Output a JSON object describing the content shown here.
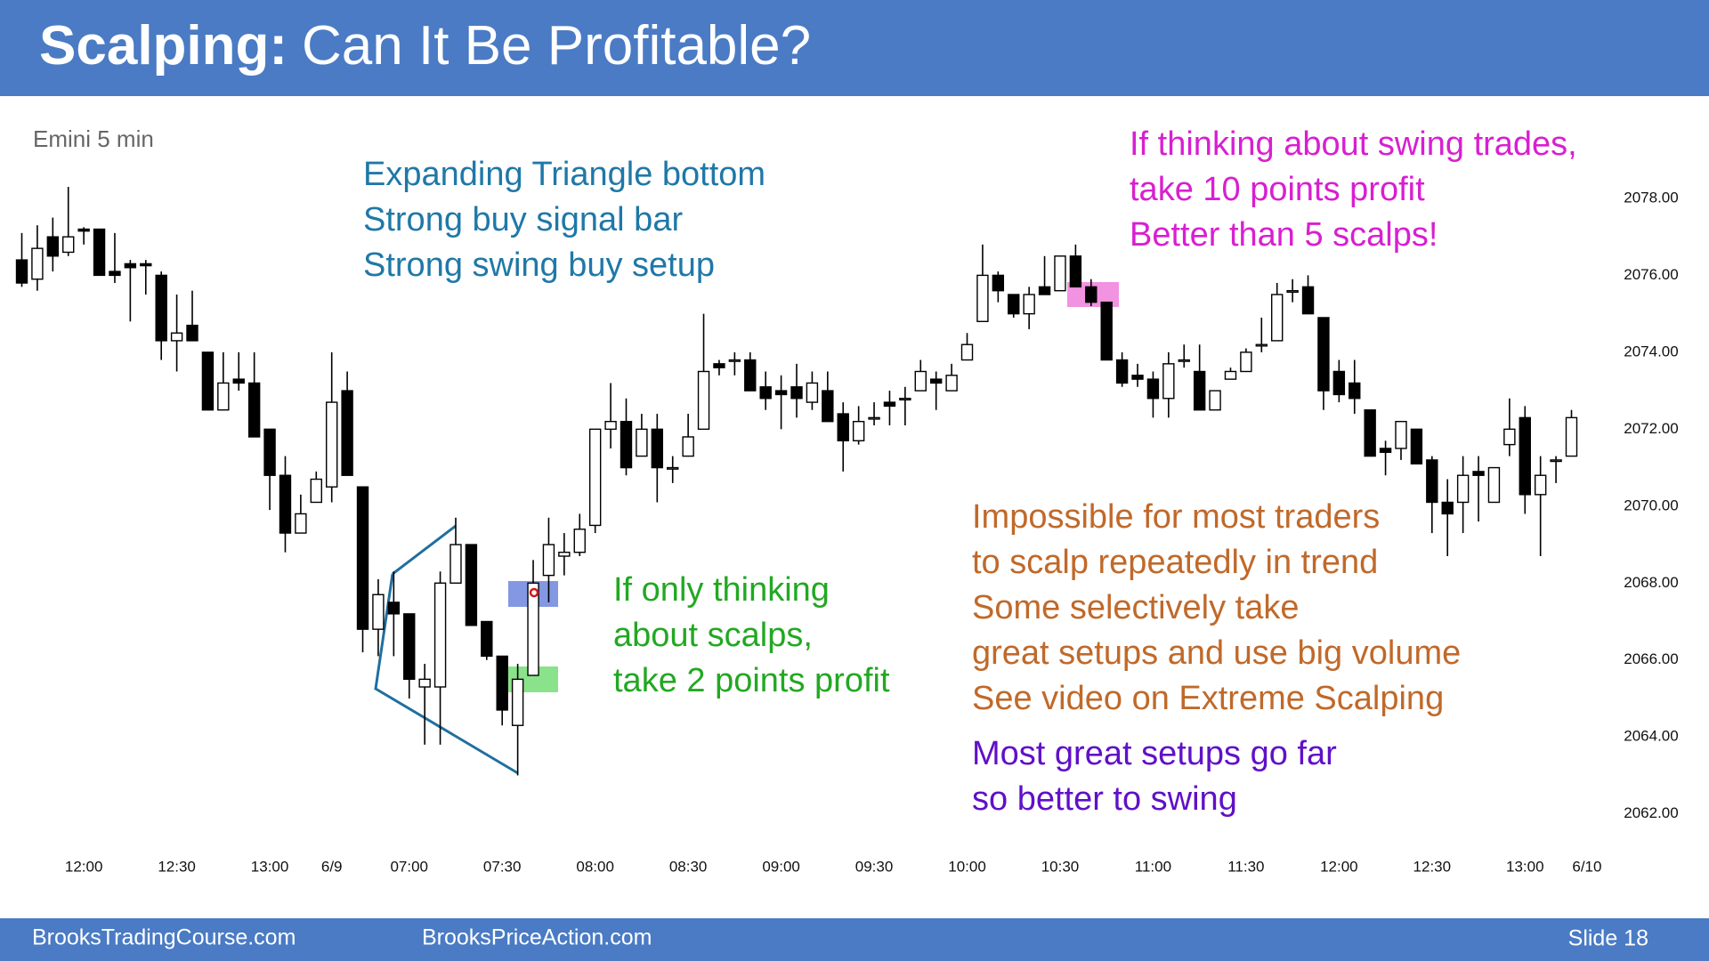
{
  "header": {
    "title_bold": "Scalping:",
    "title": "Can It Be Profitable?"
  },
  "chart_data": {
    "type": "candlestick",
    "subtitle": "Emini 5 min",
    "categories": [
      null,
      null,
      null,
      null,
      "12:00",
      null,
      null,
      null,
      null,
      null,
      "12:30",
      null,
      null,
      null,
      null,
      null,
      "13:00",
      null,
      null,
      null,
      "6/9",
      null,
      null,
      null,
      null,
      "07:00",
      null,
      null,
      null,
      null,
      null,
      "07:30",
      null,
      null,
      null,
      null,
      null,
      "08:00",
      null,
      null,
      null,
      null,
      null,
      "08:30",
      null,
      null,
      null,
      null,
      null,
      "09:00",
      null,
      null,
      null,
      null,
      null,
      "09:30",
      null,
      null,
      null,
      null,
      null,
      "10:00",
      null,
      null,
      null,
      null,
      null,
      "10:30",
      null,
      null,
      null,
      null,
      null,
      "11:00",
      null,
      null,
      null,
      null,
      null,
      "11:30",
      null,
      null,
      null,
      null,
      null,
      "12:00",
      null,
      null,
      null,
      null,
      null,
      "12:30",
      null,
      null,
      null,
      null,
      null,
      "13:00",
      null,
      null,
      null,
      "6/10"
    ],
    "open": [
      2076.4,
      2075.9,
      2077.0,
      2076.6,
      2077.2,
      2077.2,
      2076.1,
      2076.3,
      2076.3,
      2076.0,
      2074.3,
      2074.7,
      2074.0,
      2072.5,
      2073.3,
      2073.2,
      2072.0,
      2070.8,
      2069.3,
      2070.1,
      2070.5,
      2073.0,
      2070.5,
      2066.8,
      2067.5,
      2067.2,
      2065.3,
      2065.3,
      2068.0,
      2069.0,
      2067.0,
      2066.1,
      2064.3,
      2065.6,
      2068.2,
      2068.7,
      2068.8,
      2069.5,
      2072.0,
      2072.2,
      2071.3,
      2072.0,
      2071.0,
      2071.3,
      2072.0,
      2073.7,
      2073.8,
      2073.8,
      2073.1,
      2073.0,
      2073.1,
      2072.7,
      2073.0,
      2072.4,
      2071.7,
      2072.3,
      2072.7,
      2072.8,
      2073.0,
      2073.3,
      2073.0,
      2073.8,
      2074.8,
      2076.0,
      2075.5,
      2075.0,
      2075.7,
      2075.6,
      2076.5,
      2075.7,
      2075.3,
      2073.8,
      2073.4,
      2073.3,
      2072.8,
      2073.8,
      2073.5,
      2072.5,
      2073.3,
      2073.5,
      2074.2,
      2074.3,
      2075.6,
      2075.7,
      2074.9,
      2073.5,
      2073.2,
      2072.5,
      2071.5,
      2071.5,
      2072.0,
      2071.2,
      2070.1,
      2070.1,
      2070.9,
      2070.1,
      2071.6,
      2072.3,
      2070.3,
      2071.2,
      2071.3,
      null
    ],
    "high": [
      2077.1,
      2077.3,
      2077.5,
      2078.3,
      2077.25,
      2077.2,
      2077.1,
      2076.4,
      2076.4,
      2076.1,
      2075.5,
      2075.6,
      2074.0,
      2074.0,
      2074.0,
      2074.0,
      2072.0,
      2071.3,
      2070.3,
      2070.9,
      2074.0,
      2073.5,
      2070.5,
      2068.1,
      2068.3,
      2067.2,
      2065.9,
      2068.3,
      2069.7,
      2069.0,
      2067.0,
      2066.1,
      2065.9,
      2068.6,
      2069.7,
      2069.3,
      2069.8,
      2072.0,
      2073.2,
      2072.8,
      2072.4,
      2072.4,
      2071.3,
      2072.4,
      2075.0,
      2073.8,
      2074.0,
      2074.0,
      2073.5,
      2073.4,
      2073.7,
      2073.5,
      2073.5,
      2072.7,
      2072.6,
      2072.7,
      2073.0,
      2073.1,
      2073.8,
      2073.5,
      2073.7,
      2074.5,
      2076.8,
      2076.1,
      2075.5,
      2075.7,
      2076.5,
      2076.5,
      2076.8,
      2075.9,
      2075.3,
      2074.0,
      2073.7,
      2073.5,
      2074.0,
      2074.2,
      2074.2,
      2073.0,
      2073.6,
      2074.1,
      2074.9,
      2075.8,
      2075.9,
      2076.0,
      2074.9,
      2073.8,
      2073.8,
      2072.5,
      2071.7,
      2072.2,
      2072.0,
      2071.3,
      2070.7,
      2071.3,
      2071.3,
      2071.0,
      2072.8,
      2072.6,
      2071.3,
      2071.3,
      2072.5,
      null
    ],
    "low": [
      2075.7,
      2075.6,
      2076.1,
      2076.5,
      2076.8,
      2076.0,
      2075.8,
      2074.8,
      2075.5,
      2073.8,
      2073.5,
      2074.3,
      2072.5,
      2072.5,
      2073.0,
      2071.8,
      2069.9,
      2068.8,
      2069.3,
      2070.1,
      2070.1,
      2070.8,
      2066.2,
      2066.1,
      2066.1,
      2065.0,
      2063.8,
      2063.8,
      2068.0,
      2066.9,
      2066.0,
      2064.3,
      2063.0,
      2065.6,
      2067.5,
      2068.2,
      2068.7,
      2069.3,
      2071.5,
      2070.8,
      2071.3,
      2070.1,
      2070.6,
      2071.3,
      2072.0,
      2073.4,
      2073.4,
      2073.0,
      2072.5,
      2072.0,
      2072.3,
      2072.5,
      2072.2,
      2070.9,
      2071.6,
      2072.1,
      2072.1,
      2072.1,
      2073.0,
      2072.5,
      2073.0,
      2073.8,
      2074.8,
      2075.3,
      2074.9,
      2074.6,
      2075.5,
      2075.6,
      2075.7,
      2075.2,
      2073.8,
      2073.1,
      2073.1,
      2072.3,
      2072.3,
      2073.6,
      2072.5,
      2072.5,
      2073.3,
      2073.5,
      2074.0,
      2074.3,
      2075.3,
      2075.0,
      2072.5,
      2072.7,
      2072.4,
      2071.3,
      2070.8,
      2071.2,
      2071.1,
      2069.3,
      2068.7,
      2069.3,
      2069.6,
      2070.1,
      2071.3,
      2069.8,
      2068.7,
      2070.6,
      2071.3,
      null
    ],
    "close": [
      2075.8,
      2076.7,
      2076.5,
      2077.0,
      2077.15,
      2076.0,
      2076.0,
      2076.2,
      2076.25,
      2074.3,
      2074.5,
      2074.3,
      2072.5,
      2073.2,
      2073.2,
      2071.8,
      2070.8,
      2069.3,
      2069.8,
      2070.7,
      2072.7,
      2070.8,
      2066.8,
      2067.7,
      2067.2,
      2065.5,
      2065.5,
      2068.0,
      2069.0,
      2066.9,
      2066.1,
      2064.7,
      2065.5,
      2068.0,
      2069.0,
      2068.8,
      2069.4,
      2072.0,
      2072.2,
      2071.0,
      2072.0,
      2071.0,
      2071.0,
      2071.8,
      2073.5,
      2073.6,
      2073.8,
      2073.0,
      2072.8,
      2072.9,
      2072.8,
      2073.2,
      2072.2,
      2071.7,
      2072.2,
      2072.3,
      2072.6,
      2072.8,
      2073.5,
      2073.2,
      2073.4,
      2074.2,
      2076.0,
      2075.6,
      2075.0,
      2075.5,
      2075.5,
      2076.5,
      2075.7,
      2075.3,
      2073.8,
      2073.2,
      2073.3,
      2072.8,
      2073.7,
      2073.8,
      2072.5,
      2073.0,
      2073.5,
      2074.0,
      2074.2,
      2075.5,
      2075.6,
      2075.0,
      2073.0,
      2072.9,
      2072.8,
      2071.3,
      2071.4,
      2072.2,
      2071.1,
      2070.1,
      2069.8,
      2070.8,
      2070.8,
      2071.0,
      2072.0,
      2070.3,
      2070.8,
      2071.2,
      2072.3,
      null
    ],
    "up_color": "#ffffff",
    "down_color": "#000000",
    "ylim": [
      2061.5,
      2079
    ],
    "yticks": [
      {
        "value": 2062,
        "label": "2062.00"
      },
      {
        "value": 2064,
        "label": "2064.00"
      },
      {
        "value": 2066,
        "label": "2066.00"
      },
      {
        "value": 2068,
        "label": "2068.00"
      },
      {
        "value": 2070,
        "label": "2070.00"
      },
      {
        "value": 2072,
        "label": "2072.00"
      },
      {
        "value": 2074,
        "label": "2074.00"
      },
      {
        "value": 2076,
        "label": "2076.00"
      },
      {
        "value": 2078,
        "label": "2078.00"
      }
    ],
    "annotations": [
      {
        "lines": [
          "Expanding Triangle bottom",
          "Strong buy signal bar",
          "Strong swing buy setup"
        ],
        "color": "#1f78a8"
      },
      {
        "lines": [
          "If thinking about swing trades,",
          "take 10 points profit",
          "Better than 5 scalps!"
        ],
        "color": "#d81fd0"
      },
      {
        "lines": [
          "If only thinking",
          "about scalps,",
          "take 2 points profit"
        ],
        "color": "#22a822"
      },
      {
        "lines": [
          "Impossible for most traders",
          "to scalp repeatedly in trend",
          "Some selectively take",
          "great setups and use big volume",
          "See video on Extreme Scalping"
        ],
        "color": "#c0692a"
      },
      {
        "lines": [
          "Most great setups go far",
          "so better to swing"
        ],
        "color": "#6010c8"
      }
    ]
  },
  "footer": {
    "left": "BrooksTradingCourse.com",
    "center": "BrooksPriceAction.com",
    "slide": "Slide 18"
  }
}
